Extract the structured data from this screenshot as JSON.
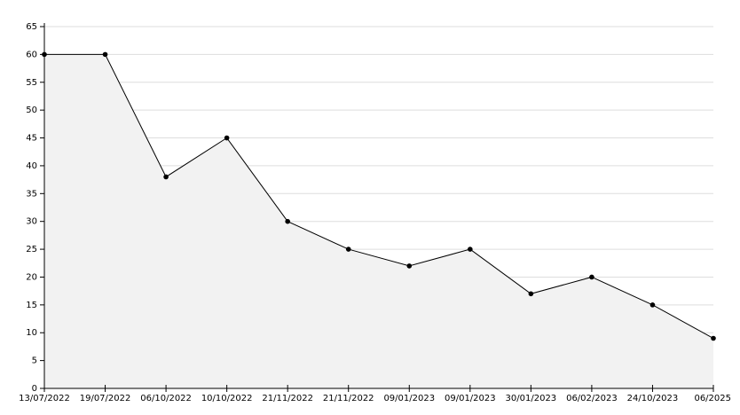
{
  "chart_data": {
    "type": "area",
    "categories": [
      "13/07/2022",
      "19/07/2022",
      "06/10/2022",
      "10/10/2022",
      "21/11/2022",
      "21/11/2022",
      "09/01/2023",
      "09/01/2023",
      "30/01/2023",
      "06/02/2023",
      "24/10/2023",
      "06/2025"
    ],
    "values": [
      60,
      60,
      38,
      45,
      30,
      25,
      22,
      25,
      17,
      20,
      15,
      9
    ],
    "color": "#000000",
    "fill": "#f2f2f2",
    "ylim": [
      0,
      65
    ],
    "yticks": [
      0,
      5,
      10,
      15,
      20,
      25,
      30,
      35,
      40,
      45,
      50,
      55,
      60,
      65
    ],
    "grid": true
  }
}
